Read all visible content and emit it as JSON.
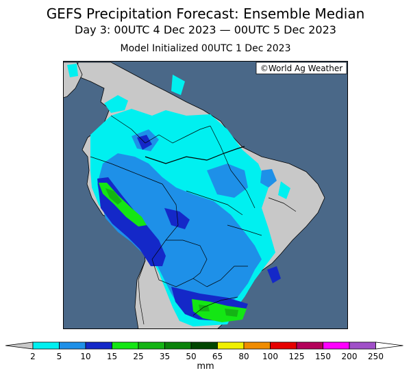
{
  "title": "GEFS Precipitation Forecast: Ensemble Median",
  "subtitle": "Day 3: 00UTC 4 Dec 2023 — 00UTC 5 Dec 2023",
  "init_line": "Model Initialized 00UTC 1 Dec 2023",
  "credit": "©World Ag Weather",
  "colors": {
    "ocean": "#4a6888",
    "land": "#c8c8c8"
  },
  "legend": {
    "unit": "mm",
    "bins": [
      {
        "label": "2",
        "color": "#00f0f0"
      },
      {
        "label": "5",
        "color": "#1e90e8"
      },
      {
        "label": "10",
        "color": "#1428c8"
      },
      {
        "label": "15",
        "color": "#14e614"
      },
      {
        "label": "25",
        "color": "#14b414"
      },
      {
        "label": "35",
        "color": "#0a820a"
      },
      {
        "label": "50",
        "color": "#004600"
      },
      {
        "label": "65",
        "color": "#f0f000"
      },
      {
        "label": "80",
        "color": "#f08c00"
      },
      {
        "label": "100",
        "color": "#e60000"
      },
      {
        "label": "125",
        "color": "#b4005a"
      },
      {
        "label": "150",
        "color": "#ff00ff"
      },
      {
        "label": "200",
        "color": "#a050c8"
      },
      {
        "label": "250",
        "color": ""
      }
    ]
  }
}
